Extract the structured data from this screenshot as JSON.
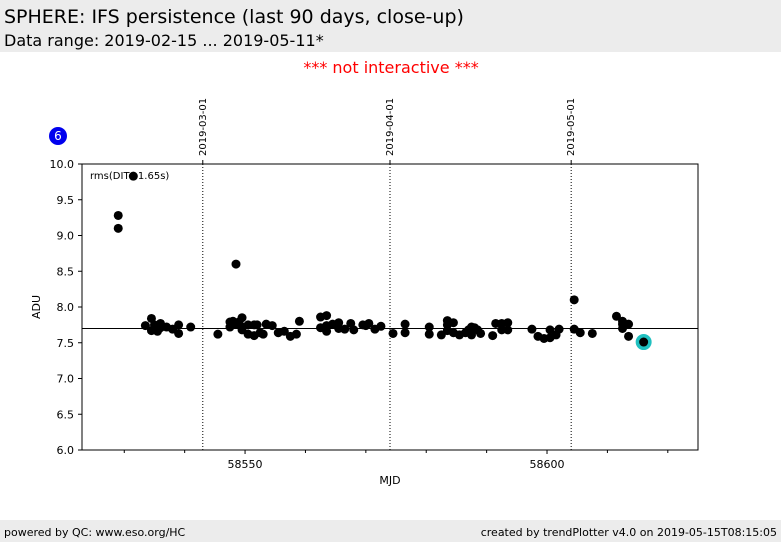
{
  "header": {
    "title": "SPHERE: IFS persistence (last 90 days, close-up)",
    "subtitle": "Data range: 2019-02-15 ... 2019-05-11*"
  },
  "notice": "*** not interactive ***",
  "footer": {
    "left": "powered by QC: www.eso.org/HC",
    "right": "created by trendPlotter v4.0 on 2019-05-15T08:15:05"
  },
  "badge": "6",
  "colors": {
    "points": "#000000",
    "highlight": "#20c0c0",
    "notice": "#ff0000",
    "badge": "#0000ee"
  },
  "chart_data": {
    "type": "scatter",
    "title": "",
    "xlabel": "MJD",
    "ylabel": "ADU",
    "xlim": [
      58523,
      58625
    ],
    "ylim": [
      6.0,
      10.0
    ],
    "x_ticks": [
      58550,
      58600
    ],
    "y_ticks": [
      6.0,
      6.5,
      7.0,
      7.5,
      8.0,
      8.5,
      9.0,
      9.5,
      10.0
    ],
    "annotation": "rms(DIT=1.65s)",
    "reference_line": 7.7,
    "date_markers": [
      {
        "label": "2019-03-01",
        "x": 58543
      },
      {
        "label": "2019-04-01",
        "x": 58574
      },
      {
        "label": "2019-05-01",
        "x": 58604
      }
    ],
    "highlight_point": {
      "x": 58616,
      "y": 7.51
    },
    "x": [
      58529.0,
      58529.0,
      58531.5,
      58533.5,
      58534.5,
      58534.5,
      58535.0,
      58535.5,
      58536.0,
      58536.0,
      58537.0,
      58538.0,
      58539.0,
      58539.0,
      58541.0,
      58545.5,
      58547.5,
      58547.5,
      58548.0,
      58548.5,
      58548.5,
      58549.0,
      58549.5,
      58549.5,
      58549.5,
      58550.5,
      58550.5,
      58551.5,
      58551.5,
      58552.0,
      58552.5,
      58553.0,
      58553.5,
      58554.5,
      58555.5,
      58556.5,
      58557.5,
      58558.5,
      58559.0,
      58562.5,
      58562.5,
      58563.5,
      58563.5,
      58563.5,
      58564.5,
      58565.5,
      58565.5,
      58566.5,
      58567.5,
      58568.0,
      58569.5,
      58570.0,
      58570.5,
      58571.5,
      58572.5,
      58574.5,
      58576.5,
      58576.5,
      58580.5,
      58580.5,
      58582.5,
      58583.5,
      58583.5,
      58583.5,
      58584.5,
      58584.5,
      58585.5,
      58586.5,
      58587.0,
      58587.5,
      58587.5,
      58588.0,
      58588.5,
      58589.0,
      58591.0,
      58591.5,
      58592.5,
      58592.5,
      58593.5,
      58593.5,
      58597.5,
      58598.5,
      58599.5,
      58600.5,
      58600.5,
      58601.5,
      58602.0,
      58604.5,
      58604.5,
      58605.5,
      58607.5,
      58611.5,
      58612.5,
      58612.5,
      58612.5,
      58613.5,
      58613.5,
      58616.0
    ],
    "y": [
      9.28,
      9.1,
      9.83,
      7.74,
      7.84,
      7.67,
      7.75,
      7.66,
      7.77,
      7.71,
      7.72,
      7.69,
      7.75,
      7.63,
      7.72,
      7.62,
      7.79,
      7.72,
      7.8,
      8.6,
      7.76,
      7.79,
      7.72,
      7.85,
      7.68,
      7.75,
      7.62,
      7.6,
      7.75,
      7.75,
      7.64,
      7.62,
      7.76,
      7.74,
      7.64,
      7.66,
      7.59,
      7.62,
      7.8,
      7.86,
      7.71,
      7.88,
      7.74,
      7.66,
      7.76,
      7.78,
      7.7,
      7.69,
      7.77,
      7.68,
      7.75,
      7.74,
      7.77,
      7.69,
      7.73,
      7.63,
      7.76,
      7.64,
      7.72,
      7.62,
      7.61,
      7.75,
      7.81,
      7.67,
      7.78,
      7.64,
      7.61,
      7.64,
      7.68,
      7.72,
      7.61,
      7.71,
      7.68,
      7.63,
      7.6,
      7.77,
      7.68,
      7.77,
      7.68,
      7.78,
      7.69,
      7.59,
      7.56,
      7.68,
      7.57,
      7.61,
      7.69,
      8.1,
      7.69,
      7.64,
      7.63,
      7.87,
      7.8,
      7.7,
      7.76,
      7.76,
      7.59,
      7.51
    ]
  }
}
